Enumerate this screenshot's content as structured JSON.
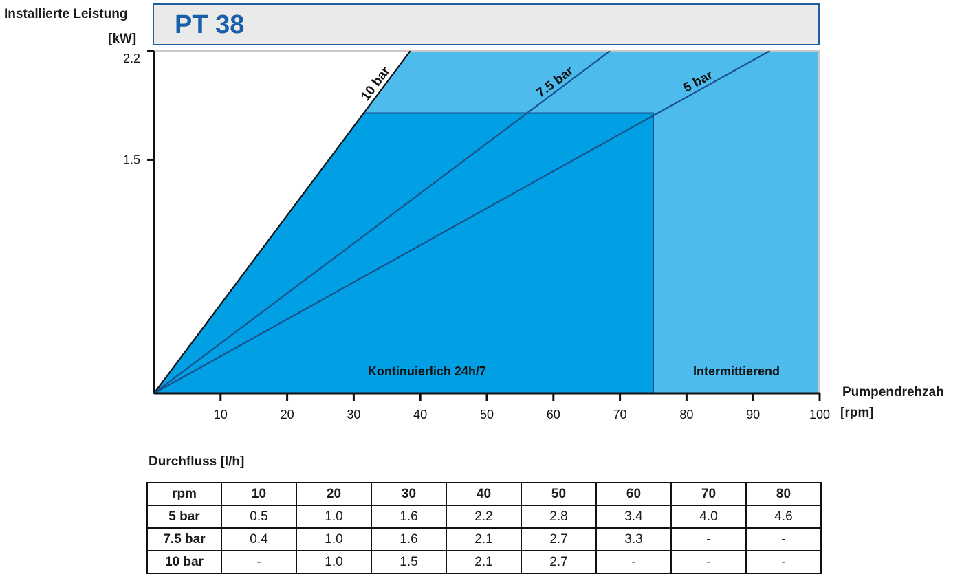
{
  "header": {
    "title": "PT 38",
    "y_axis_title": "Installierte Leistung",
    "y_axis_unit": "[kW]",
    "x_axis_title": "Pumpendrehzah",
    "x_axis_unit": "[rpm]"
  },
  "chart_data": {
    "type": "area",
    "title": "PT 38",
    "xlabel": "Pumpendrehzah [rpm]",
    "ylabel": "Installierte Leistung [kW]",
    "xlim": [
      0,
      100
    ],
    "ylim": [
      0,
      2.2
    ],
    "x_ticks": [
      10,
      20,
      30,
      40,
      50,
      60,
      70,
      80,
      90,
      100
    ],
    "y_ticks": [
      1.5,
      2.2
    ],
    "regions": [
      {
        "label": "Kontinuierlich 24h/7",
        "x_range": [
          0,
          75
        ],
        "y_max": 1.8,
        "color": "#019fe3"
      },
      {
        "label": "Intermittierend",
        "x_range": [
          0,
          100
        ],
        "y_max": 2.2,
        "color": "#4dbbec"
      }
    ],
    "series": [
      {
        "name": "10 bar",
        "x": [
          0,
          38.5
        ],
        "y": [
          0,
          2.2
        ]
      },
      {
        "name": "7.5 bar",
        "x": [
          0,
          68.5
        ],
        "y": [
          0,
          2.2
        ]
      },
      {
        "name": "5 bar",
        "x": [
          0,
          92.5
        ],
        "y": [
          0,
          2.2
        ]
      }
    ]
  },
  "table": {
    "title": "Durchfluss [l/h]",
    "header": [
      "rpm",
      "10",
      "20",
      "30",
      "40",
      "50",
      "60",
      "70",
      "80"
    ],
    "rows": [
      [
        "5 bar",
        "0.5",
        "1.0",
        "1.6",
        "2.2",
        "2.8",
        "3.4",
        "4.0",
        "4.6"
      ],
      [
        "7.5 bar",
        "0.4",
        "1.0",
        "1.6",
        "2.1",
        "2.7",
        "3.3",
        "-",
        "-"
      ],
      [
        "10 bar",
        "-",
        "1.0",
        "1.5",
        "2.1",
        "2.7",
        "-",
        "-",
        "-"
      ]
    ]
  },
  "colors": {
    "continuous": "#019fe3",
    "intermittent": "#4dbbec",
    "line": "#1b4f8a",
    "title": "#1a5fa8"
  }
}
